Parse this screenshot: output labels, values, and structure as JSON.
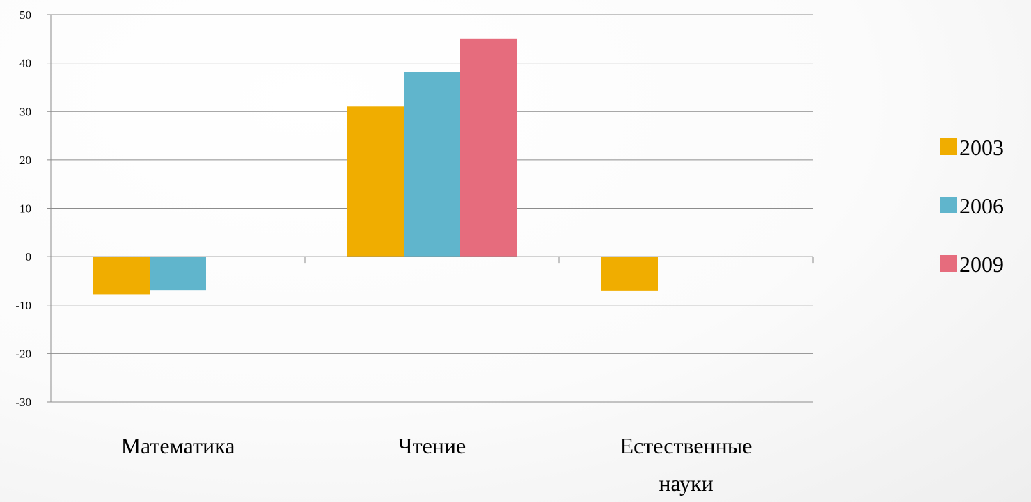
{
  "chart_data": {
    "type": "bar",
    "categories": [
      [
        "Математика"
      ],
      [
        "Чтение"
      ],
      [
        "Естественные",
        "науки"
      ]
    ],
    "series": [
      {
        "name": "2003",
        "color": "#F0AD00",
        "values": [
          -7.8,
          31,
          -7
        ]
      },
      {
        "name": "2006",
        "color": "#60B5CC",
        "values": [
          -6.9,
          38.1,
          null
        ]
      },
      {
        "name": "2009",
        "color": "#E66C7D",
        "values": [
          null,
          45,
          null
        ]
      }
    ],
    "ylim": [
      -30,
      50
    ],
    "yticks": [
      50,
      40,
      30,
      20,
      10,
      0,
      -10,
      -20,
      -30
    ],
    "grid": true,
    "legend_position": "right",
    "title": "",
    "xlabel": "",
    "ylabel": ""
  }
}
